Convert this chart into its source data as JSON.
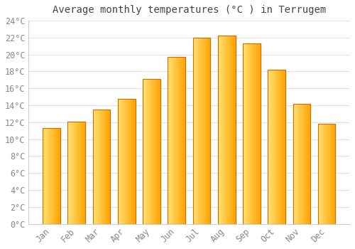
{
  "title": "Average monthly temperatures (°C ) in Terrugem",
  "months": [
    "Jan",
    "Feb",
    "Mar",
    "Apr",
    "May",
    "Jun",
    "Jul",
    "Aug",
    "Sep",
    "Oct",
    "Nov",
    "Dec"
  ],
  "values": [
    11.3,
    12.1,
    13.5,
    14.8,
    17.1,
    19.7,
    22.0,
    22.2,
    21.3,
    18.2,
    14.2,
    11.8
  ],
  "bar_color_left": "#FFE070",
  "bar_color_right": "#FFA000",
  "bar_edge_color": "#CC7000",
  "background_color": "#FFFFFF",
  "grid_color": "#E0E0E0",
  "text_color": "#888888",
  "title_color": "#444444",
  "ylim": [
    0,
    24
  ],
  "ytick_step": 2,
  "title_fontsize": 10,
  "tick_fontsize": 8.5,
  "figsize": [
    5.0,
    3.5
  ],
  "dpi": 100
}
